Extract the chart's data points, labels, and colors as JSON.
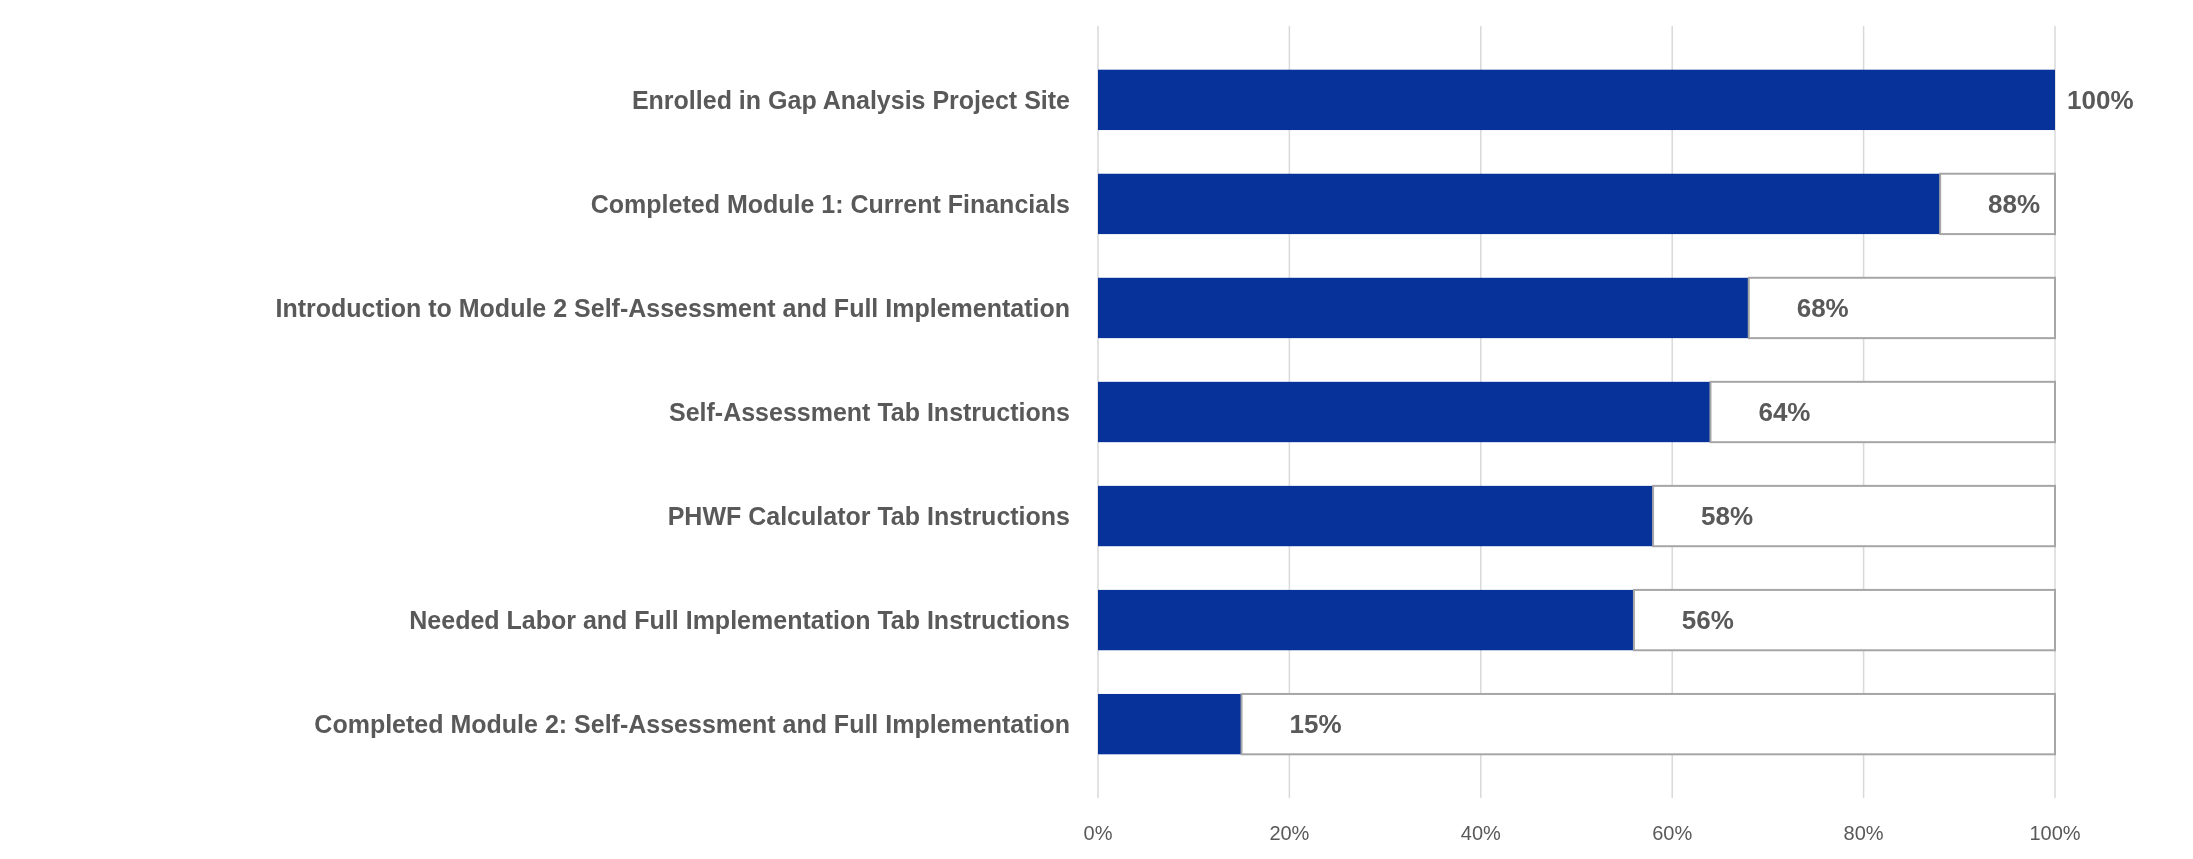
{
  "chart_data": {
    "type": "bar",
    "orientation": "horizontal",
    "stacked": true,
    "categories": [
      "Enrolled in Gap Analysis Project Site",
      "Completed Module 1: Current Financials",
      "Introduction to Module 2 Self-Assessment and Full Implementation",
      "Self-Assessment Tab Instructions",
      "PHWF Calculator Tab Instructions",
      "Needed Labor and Full Implementation Tab Instructions",
      "Completed Module 2: Self-Assessment and Full Implementation"
    ],
    "series": [
      {
        "color": "#06329a",
        "values": [
          100,
          88,
          68,
          64,
          58,
          56,
          15
        ],
        "value_labels": [
          "100%",
          "88%",
          "68%",
          "64%",
          "58%",
          "56%",
          "15%"
        ]
      },
      {
        "color": "#ffffff",
        "values": [
          0,
          12,
          32,
          36,
          42,
          44,
          85
        ]
      }
    ],
    "xlim": [
      0,
      100
    ],
    "xticks": [
      {
        "value": 0,
        "label": "0%"
      },
      {
        "value": 20,
        "label": "20%"
      },
      {
        "value": 40,
        "label": "40%"
      },
      {
        "value": 60,
        "label": "60%"
      },
      {
        "value": 80,
        "label": "80%"
      },
      {
        "value": 100,
        "label": "100%"
      }
    ],
    "grid": "x"
  }
}
